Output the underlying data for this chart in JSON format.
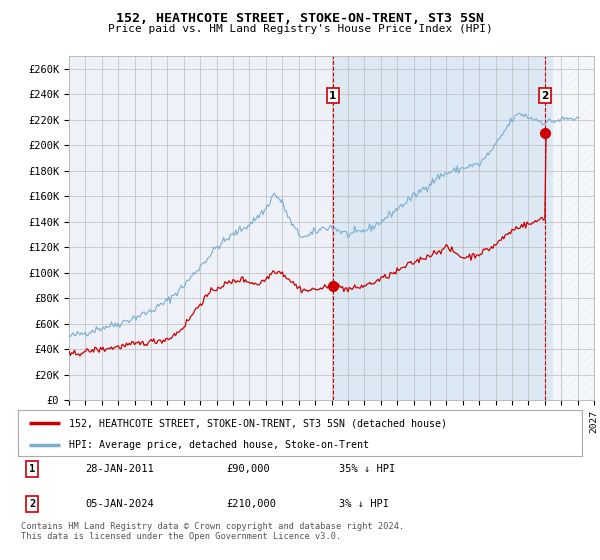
{
  "title": "152, HEATHCOTE STREET, STOKE-ON-TRENT, ST3 5SN",
  "subtitle": "Price paid vs. HM Land Registry's House Price Index (HPI)",
  "ylim": [
    0,
    270000
  ],
  "yticks": [
    0,
    20000,
    40000,
    60000,
    80000,
    100000,
    120000,
    140000,
    160000,
    180000,
    200000,
    220000,
    240000,
    260000
  ],
  "xlim_start": 1995.0,
  "xlim_end": 2027.0,
  "ann1_x": 2011.08,
  "ann1_y": 90000,
  "ann2_x": 2024.02,
  "ann2_y": 210000,
  "shade_start": 2011.08,
  "hatch_start": 2024.5,
  "legend_line1": "152, HEATHCOTE STREET, STOKE-ON-TRENT, ST3 5SN (detached house)",
  "legend_line2": "HPI: Average price, detached house, Stoke-on-Trent",
  "table_row1": [
    "1",
    "28-JAN-2011",
    "£90,000",
    "35% ↓ HPI"
  ],
  "table_row2": [
    "2",
    "05-JAN-2024",
    "£210,000",
    "3% ↓ HPI"
  ],
  "footer1": "Contains HM Land Registry data © Crown copyright and database right 2024.",
  "footer2": "This data is licensed under the Open Government Licence v3.0.",
  "line_color_red": "#cc0000",
  "line_color_blue": "#7aadcf",
  "background_color": "#ffffff",
  "plot_bg": "#eef2f8",
  "shade_bg": "#dde8f5",
  "grid_color": "#bbbbbb",
  "annot_color": "#cc0000"
}
